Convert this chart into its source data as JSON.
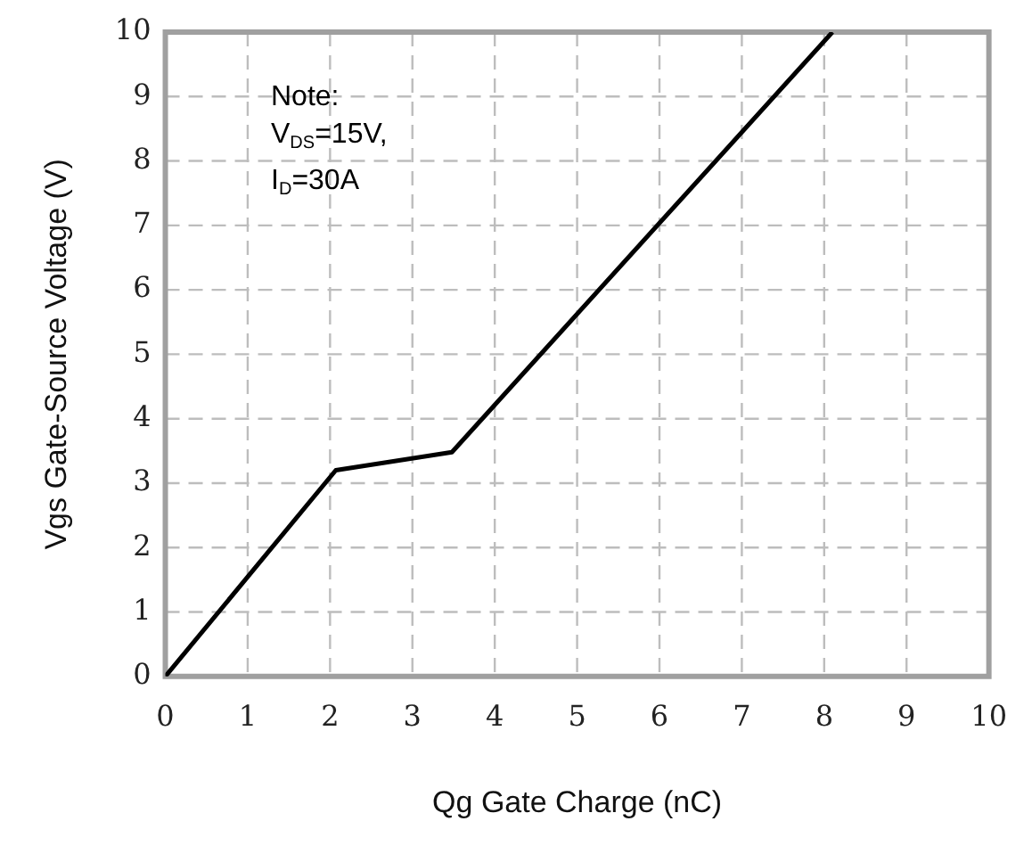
{
  "chart_data": {
    "type": "line",
    "xlabel": "Qg Gate Charge (nC)",
    "ylabel": "Vgs Gate-Source Voltage (V)",
    "annotations": [
      "Note:\nV$_{DS}$=15V,\nI$_{D}$=30A"
    ],
    "series": [
      {
        "color": "#000000",
        "x": [
          0,
          2.07,
          3.48,
          8.1
        ],
        "values": [
          0,
          3.2,
          3.48,
          10
        ]
      }
    ],
    "xlim": [
      0,
      10
    ],
    "xticks": [
      0,
      1,
      2,
      3,
      4,
      5,
      6,
      7,
      8,
      9,
      10
    ],
    "ylim": [
      0,
      10
    ],
    "yticks": [
      0,
      1,
      2,
      3,
      4,
      5,
      6,
      7,
      8,
      9,
      10
    ],
    "grid": true,
    "legend": false,
    "marker": "none",
    "line_style": "solid"
  }
}
